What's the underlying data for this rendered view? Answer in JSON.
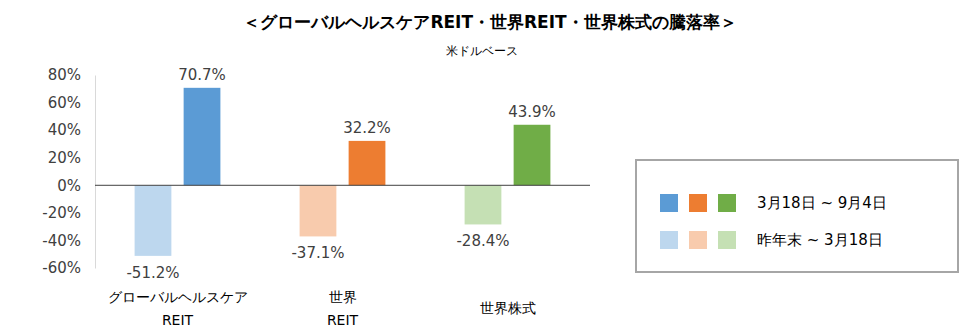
{
  "chart_data": {
    "type": "bar",
    "title": "＜グローバルヘルスケアREIT・世界REIT・世界株式の騰落率＞",
    "subtitle": "米ドルベース",
    "categories": [
      "グローバルヘルスケア\nREIT",
      "世界\nREIT",
      "世界株式"
    ],
    "series": [
      {
        "name": "昨年末 ~ 3月18日",
        "values": [
          -51.2,
          -37.1,
          -28.4
        ],
        "value_labels": [
          "-51.2%",
          "-37.1%",
          "-28.4%"
        ],
        "colors": [
          "#bdd7ee",
          "#f8cbad",
          "#c5e0b4"
        ]
      },
      {
        "name": "3月18日 ~ 9月4日",
        "values": [
          70.7,
          32.2,
          43.9
        ],
        "value_labels": [
          "70.7%",
          "32.2%",
          "43.9%"
        ],
        "colors": [
          "#5b9bd5",
          "#ed7d31",
          "#70ad47"
        ]
      }
    ],
    "ylim": [
      -60,
      80
    ],
    "yticks": [
      {
        "value": -60,
        "label": "-60%"
      },
      {
        "value": -40,
        "label": "-40%"
      },
      {
        "value": -20,
        "label": "-20%"
      },
      {
        "value": 0,
        "label": "0%"
      },
      {
        "value": 20,
        "label": "20%"
      },
      {
        "value": 40,
        "label": "40%"
      },
      {
        "value": 60,
        "label": "60%"
      },
      {
        "value": 80,
        "label": "80%"
      }
    ],
    "grid": false,
    "legend": "right",
    "data_labels": true
  }
}
